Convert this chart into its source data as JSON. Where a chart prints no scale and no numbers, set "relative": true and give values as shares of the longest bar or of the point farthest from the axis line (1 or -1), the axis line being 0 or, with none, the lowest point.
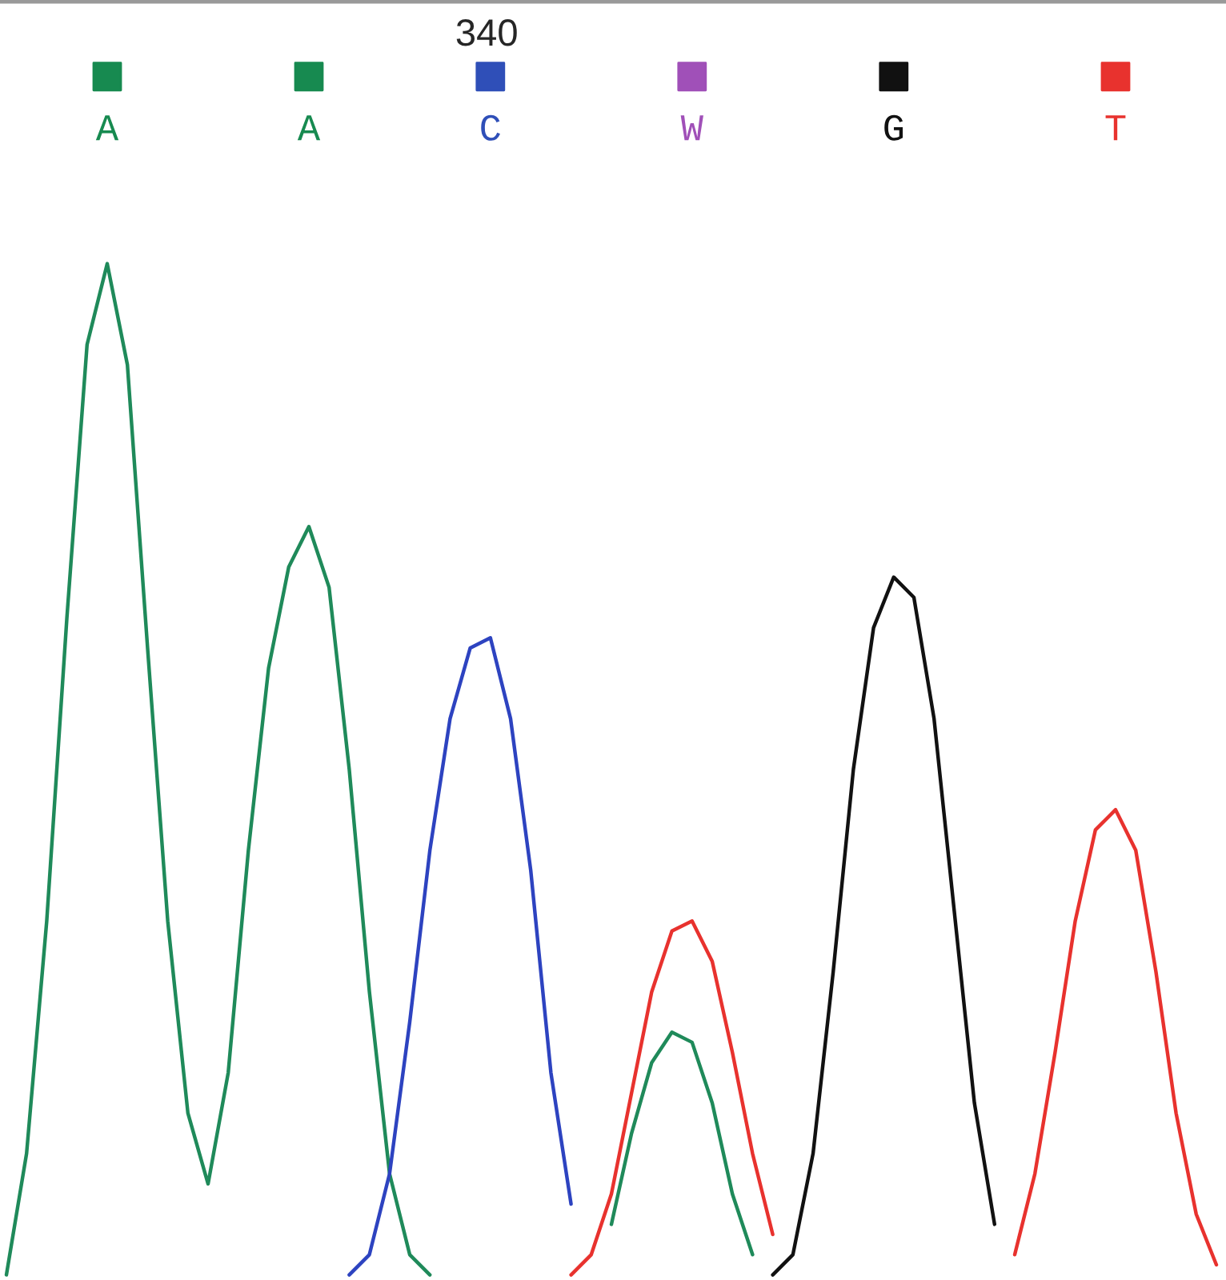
{
  "chart_data": {
    "type": "line",
    "relative": true,
    "annotations": [
      "340"
    ],
    "categories": [
      null,
      null,
      null,
      null,
      null,
      "A",
      null,
      null,
      null,
      null,
      null,
      null,
      null,
      null,
      null,
      "A",
      null,
      null,
      null,
      null,
      null,
      null,
      null,
      null,
      "C",
      null,
      null,
      null,
      null,
      null,
      null,
      null,
      null,
      null,
      "W",
      null,
      null,
      null,
      null,
      null,
      null,
      null,
      null,
      null,
      "G",
      null,
      null,
      null,
      null,
      null,
      null,
      null,
      null,
      null,
      null,
      "T",
      null,
      null,
      null,
      null,
      null
    ],
    "colors": [
      null,
      null,
      null,
      null,
      null,
      "#178a50",
      null,
      null,
      null,
      null,
      null,
      null,
      null,
      null,
      null,
      "#178a50",
      null,
      null,
      null,
      null,
      null,
      null,
      null,
      null,
      "#2f4fb8",
      null,
      null,
      null,
      null,
      null,
      null,
      null,
      null,
      null,
      "#a050b8",
      null,
      null,
      null,
      null,
      null,
      null,
      null,
      null,
      null,
      "#111111",
      null,
      null,
      null,
      null,
      null,
      null,
      null,
      null,
      null,
      null,
      "#e8322e",
      null,
      null,
      null,
      null,
      null
    ],
    "series": [
      {
        "color": "#1f8a5a",
        "values": [
          0,
          0.12,
          0.35,
          0.65,
          0.92,
          1.0,
          0.9,
          0.62,
          0.35,
          0.16,
          0.09,
          0.2,
          0.42,
          0.6,
          0.7,
          0.74,
          0.68,
          0.5,
          0.28,
          0.1,
          0.02,
          0,
          null,
          null,
          null,
          null,
          null,
          null,
          null,
          null,
          0.05,
          0.14,
          0.21,
          0.24,
          0.23,
          0.17,
          0.08,
          0.02,
          null,
          null,
          null,
          null,
          null,
          null,
          null,
          null,
          null,
          null,
          null,
          null,
          null,
          null,
          null,
          null,
          null,
          null,
          null,
          null,
          null,
          null,
          null
        ]
      },
      {
        "color": "#2d43c0",
        "values": [
          null,
          null,
          null,
          null,
          null,
          null,
          null,
          null,
          null,
          null,
          null,
          null,
          null,
          null,
          null,
          null,
          null,
          0,
          0.02,
          0.1,
          0.25,
          0.42,
          0.55,
          0.62,
          0.63,
          0.55,
          0.4,
          0.2,
          0.07,
          null,
          null,
          null,
          null,
          null,
          null,
          null,
          null,
          null,
          null,
          null,
          null,
          null,
          null,
          null,
          null,
          null,
          null,
          null,
          null,
          null,
          null,
          null,
          null,
          null,
          null,
          null,
          null,
          null,
          null,
          null,
          null
        ]
      },
      {
        "color": "#e8322e",
        "values": [
          null,
          null,
          null,
          null,
          null,
          null,
          null,
          null,
          null,
          null,
          null,
          null,
          null,
          null,
          null,
          null,
          null,
          null,
          null,
          null,
          null,
          null,
          null,
          null,
          null,
          null,
          null,
          null,
          0,
          0.02,
          0.08,
          0.18,
          0.28,
          0.34,
          0.35,
          0.31,
          0.22,
          0.12,
          0.04,
          null,
          null,
          null,
          null,
          null,
          null,
          null,
          null,
          null,
          null,
          null,
          0.02,
          0.1,
          0.22,
          0.35,
          0.44,
          0.46,
          0.42,
          0.3,
          0.16,
          0.06,
          0.01
        ]
      },
      {
        "color": "#111111",
        "values": [
          null,
          null,
          null,
          null,
          null,
          null,
          null,
          null,
          null,
          null,
          null,
          null,
          null,
          null,
          null,
          null,
          null,
          null,
          null,
          null,
          null,
          null,
          null,
          null,
          null,
          null,
          null,
          null,
          null,
          null,
          null,
          null,
          null,
          null,
          null,
          null,
          null,
          null,
          0,
          0.02,
          0.12,
          0.3,
          0.5,
          0.64,
          0.69,
          0.67,
          0.55,
          0.36,
          0.17,
          0.05,
          null,
          null,
          null,
          null,
          null,
          null,
          null,
          null,
          null,
          null,
          null
        ]
      }
    ]
  }
}
